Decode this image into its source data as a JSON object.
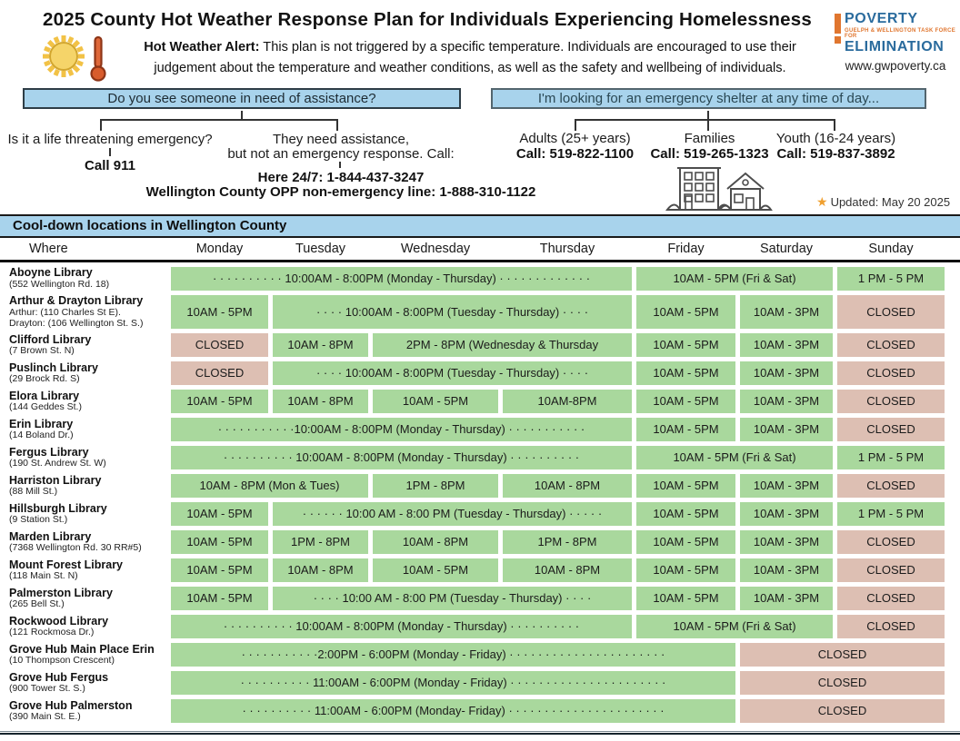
{
  "header": {
    "title": "2025 County Hot Weather Response Plan for Individuals Experiencing Homelessness",
    "alert_label": "Hot Weather Alert:",
    "alert_line1": " This plan is not triggered by a specific temperature. Individuals are encouraged to use their",
    "alert_line2": "judgement about the temperature and weather conditions, as well as the safety and wellbeing of individuals.",
    "logo": {
      "word1": "POVERTY",
      "tagline": "GUELPH & WELLINGTON TASK FORCE FOR",
      "word2": "ELIMINATION",
      "website": "www.gwpoverty.ca"
    }
  },
  "flow_left": {
    "question": "Do you see someone in need of assistance?",
    "branch1_label": "Is it a life threatening emergency?",
    "branch1_action": "Call 911",
    "branch2_label_line1": "They need assistance,",
    "branch2_label_line2": "but not an emergency response. Call:",
    "branch2_action_line1": "Here 24/7: 1-844-437-3247",
    "branch2_action_line2": "Wellington County OPP non-emergency line: 1-888-310-1122"
  },
  "flow_right": {
    "question": "I'm looking for an emergency shelter at any time of day...",
    "branches": [
      {
        "label": "Adults (25+ years)",
        "action": "Call: 519-822-1100"
      },
      {
        "label": "Families",
        "action": "Call: 519-265-1323"
      },
      {
        "label": "Youth (16-24 years)",
        "action": "Call: 519-837-3892"
      }
    ],
    "updated": "Updated: May 20 2025"
  },
  "table": {
    "section_title": "Cool-down locations in Wellington County",
    "columns": [
      "Where",
      "Monday",
      "Tuesday",
      "Wednesday",
      "Thursday",
      "Friday",
      "Saturday",
      "Sunday"
    ],
    "rows": [
      {
        "name": "Aboyne Library",
        "address": [
          "(552 Wellington Rd. 18)"
        ],
        "cells": [
          {
            "text": "· · · · · · · · · · 10:00AM - 8:00PM (Monday - Thursday) · · · · · · · · · · · · ·",
            "span": 4,
            "closed": false
          },
          {
            "text": "10AM - 5PM (Fri & Sat)",
            "span": 2,
            "closed": false
          },
          {
            "text": "1 PM - 5 PM",
            "span": 1,
            "closed": false
          }
        ]
      },
      {
        "name": "Arthur & Drayton Library",
        "address": [
          "Arthur: (110 Charles St E).",
          "Drayton: (106 Wellington St. S.)"
        ],
        "cells": [
          {
            "text": "10AM - 5PM",
            "span": 1,
            "closed": false
          },
          {
            "text": "· · · ·  10:00AM - 8:00PM (Tuesday - Thursday)  · · · ·",
            "span": 3,
            "closed": false
          },
          {
            "text": "10AM - 5PM",
            "span": 1,
            "closed": false
          },
          {
            "text": "10AM - 3PM",
            "span": 1,
            "closed": false
          },
          {
            "text": "CLOSED",
            "span": 1,
            "closed": true
          }
        ]
      },
      {
        "name": "Clifford Library",
        "address": [
          "(7 Brown St. N)"
        ],
        "cells": [
          {
            "text": "CLOSED",
            "span": 1,
            "closed": true
          },
          {
            "text": "10AM - 8PM",
            "span": 1,
            "closed": false
          },
          {
            "text": "2PM - 8PM (Wednesday & Thursday",
            "span": 2,
            "closed": false
          },
          {
            "text": "10AM - 5PM",
            "span": 1,
            "closed": false
          },
          {
            "text": "10AM - 3PM",
            "span": 1,
            "closed": false
          },
          {
            "text": "CLOSED",
            "span": 1,
            "closed": true
          }
        ]
      },
      {
        "name": "Puslinch Library",
        "address": [
          "(29 Brock Rd. S)"
        ],
        "cells": [
          {
            "text": "CLOSED",
            "span": 1,
            "closed": true
          },
          {
            "text": "· · · ·  10:00AM - 8:00PM (Tuesday - Thursday)  · · · ·",
            "span": 3,
            "closed": false
          },
          {
            "text": "10AM - 5PM",
            "span": 1,
            "closed": false
          },
          {
            "text": "10AM - 3PM",
            "span": 1,
            "closed": false
          },
          {
            "text": "CLOSED",
            "span": 1,
            "closed": true
          }
        ]
      },
      {
        "name": "Elora Library",
        "address": [
          "(144 Geddes St.)"
        ],
        "cells": [
          {
            "text": "10AM - 5PM",
            "span": 1,
            "closed": false
          },
          {
            "text": "10AM - 8PM",
            "span": 1,
            "closed": false
          },
          {
            "text": "10AM - 5PM",
            "span": 1,
            "closed": false
          },
          {
            "text": "10AM-8PM",
            "span": 1,
            "closed": false
          },
          {
            "text": "10AM - 5PM",
            "span": 1,
            "closed": false
          },
          {
            "text": "10AM - 3PM",
            "span": 1,
            "closed": false
          },
          {
            "text": "CLOSED",
            "span": 1,
            "closed": true
          }
        ]
      },
      {
        "name": "Erin Library",
        "address": [
          "(14 Boland Dr.)"
        ],
        "cells": [
          {
            "text": "· · · · · · · · · · ·10:00AM - 8:00PM (Monday - Thursday)  · · · · · · · · · · ·",
            "span": 4,
            "closed": false
          },
          {
            "text": "10AM - 5PM",
            "span": 1,
            "closed": false
          },
          {
            "text": "10AM - 3PM",
            "span": 1,
            "closed": false
          },
          {
            "text": "CLOSED",
            "span": 1,
            "closed": true
          }
        ]
      },
      {
        "name": "Fergus Library",
        "address": [
          "(190 St. Andrew St. W)"
        ],
        "cells": [
          {
            "text": "· · · · · · · · · ·  10:00AM - 8:00PM (Monday - Thursday)  · · · · · · · · · ·",
            "span": 4,
            "closed": false
          },
          {
            "text": "10AM - 5PM (Fri & Sat)",
            "span": 2,
            "closed": false
          },
          {
            "text": "1 PM - 5 PM",
            "span": 1,
            "closed": false
          }
        ]
      },
      {
        "name": "Harriston Library",
        "address": [
          "(88 Mill St.)"
        ],
        "cells": [
          {
            "text": "10AM - 8PM (Mon & Tues)",
            "span": 2,
            "closed": false
          },
          {
            "text": "1PM - 8PM",
            "span": 1,
            "closed": false
          },
          {
            "text": "10AM - 8PM",
            "span": 1,
            "closed": false
          },
          {
            "text": "10AM - 5PM",
            "span": 1,
            "closed": false
          },
          {
            "text": "10AM - 3PM",
            "span": 1,
            "closed": false
          },
          {
            "text": "CLOSED",
            "span": 1,
            "closed": true
          }
        ]
      },
      {
        "name": "Hillsburgh Library",
        "address": [
          "(9 Station St.)"
        ],
        "cells": [
          {
            "text": "10AM - 5PM",
            "span": 1,
            "closed": false
          },
          {
            "text": "· · · · · ·  10:00 AM - 8:00 PM (Tuesday - Thursday) · · · · ·",
            "span": 3,
            "closed": false
          },
          {
            "text": "10AM - 5PM",
            "span": 1,
            "closed": false
          },
          {
            "text": "10AM - 3PM",
            "span": 1,
            "closed": false
          },
          {
            "text": "1 PM - 5 PM",
            "span": 1,
            "closed": false
          }
        ]
      },
      {
        "name": "Marden Library",
        "address": [
          "(7368 Wellington Rd. 30 RR#5)"
        ],
        "cells": [
          {
            "text": "10AM - 5PM",
            "span": 1,
            "closed": false
          },
          {
            "text": "1PM - 8PM",
            "span": 1,
            "closed": false
          },
          {
            "text": "10AM - 8PM",
            "span": 1,
            "closed": false
          },
          {
            "text": "1PM - 8PM",
            "span": 1,
            "closed": false
          },
          {
            "text": "10AM - 5PM",
            "span": 1,
            "closed": false
          },
          {
            "text": "10AM - 3PM",
            "span": 1,
            "closed": false
          },
          {
            "text": "CLOSED",
            "span": 1,
            "closed": true
          }
        ]
      },
      {
        "name": "Mount Forest Library",
        "address": [
          "(118 Main St. N)"
        ],
        "cells": [
          {
            "text": "10AM - 5PM",
            "span": 1,
            "closed": false
          },
          {
            "text": "10AM - 8PM",
            "span": 1,
            "closed": false
          },
          {
            "text": "10AM - 5PM",
            "span": 1,
            "closed": false
          },
          {
            "text": "10AM - 8PM",
            "span": 1,
            "closed": false
          },
          {
            "text": "10AM - 5PM",
            "span": 1,
            "closed": false
          },
          {
            "text": "10AM - 3PM",
            "span": 1,
            "closed": false
          },
          {
            "text": "CLOSED",
            "span": 1,
            "closed": true
          }
        ]
      },
      {
        "name": "Palmerston Library",
        "address": [
          "(265 Bell St.)"
        ],
        "cells": [
          {
            "text": "10AM - 5PM",
            "span": 1,
            "closed": false
          },
          {
            "text": "· · · ·  10:00 AM - 8:00 PM (Tuesday - Thursday)  · · · ·",
            "span": 3,
            "closed": false
          },
          {
            "text": "10AM - 5PM",
            "span": 1,
            "closed": false
          },
          {
            "text": "10AM - 3PM",
            "span": 1,
            "closed": false
          },
          {
            "text": "CLOSED",
            "span": 1,
            "closed": true
          }
        ]
      },
      {
        "name": "Rockwood Library",
        "address": [
          "(121 Rockmosa Dr.)"
        ],
        "cells": [
          {
            "text": "· · · · · · · · · ·  10:00AM - 8:00PM (Monday - Thursday)  · · · · · · · · · ·",
            "span": 4,
            "closed": false
          },
          {
            "text": "10AM - 5PM (Fri & Sat)",
            "span": 2,
            "closed": false
          },
          {
            "text": "CLOSED",
            "span": 1,
            "closed": true
          }
        ]
      },
      {
        "name": "Grove Hub Main Place Erin",
        "address": [
          "(10 Thompson Crescent)"
        ],
        "cells": [
          {
            "text": "· · · · · · · · · · ·2:00PM - 6:00PM (Monday - Friday)  · · · · · · · · · · · · · · · · · · · · · ·",
            "span": 5,
            "closed": false
          },
          {
            "text": "CLOSED",
            "span": 2,
            "closed": true
          }
        ]
      },
      {
        "name": "Grove Hub Fergus",
        "address": [
          "(900 Tower St. S.)"
        ],
        "cells": [
          {
            "text": "· · · · · · · · · ·  11:00AM - 6:00PM (Monday - Friday) · · · · · · · · · · · · · · · · · · · · · ·",
            "span": 5,
            "closed": false
          },
          {
            "text": "CLOSED",
            "span": 2,
            "closed": true
          }
        ]
      },
      {
        "name": "Grove Hub Palmerston",
        "address": [
          "(390 Main St. E.)"
        ],
        "cells": [
          {
            "text": "· · · · · · · · · ·  11:00AM - 6:00PM (Monday- Friday)  · · · · · · · · · · · · · · · · · · · · · ·",
            "span": 5,
            "closed": false
          },
          {
            "text": "CLOSED",
            "span": 2,
            "closed": true
          }
        ]
      }
    ]
  },
  "colors": {
    "open_green": "#a9d89d",
    "closed_pink": "#ddbfb3",
    "header_blue": "#a8d3ec",
    "logo_blue": "#2a6b9d",
    "logo_orange": "#e0762f",
    "star_orange": "#f0a030"
  }
}
